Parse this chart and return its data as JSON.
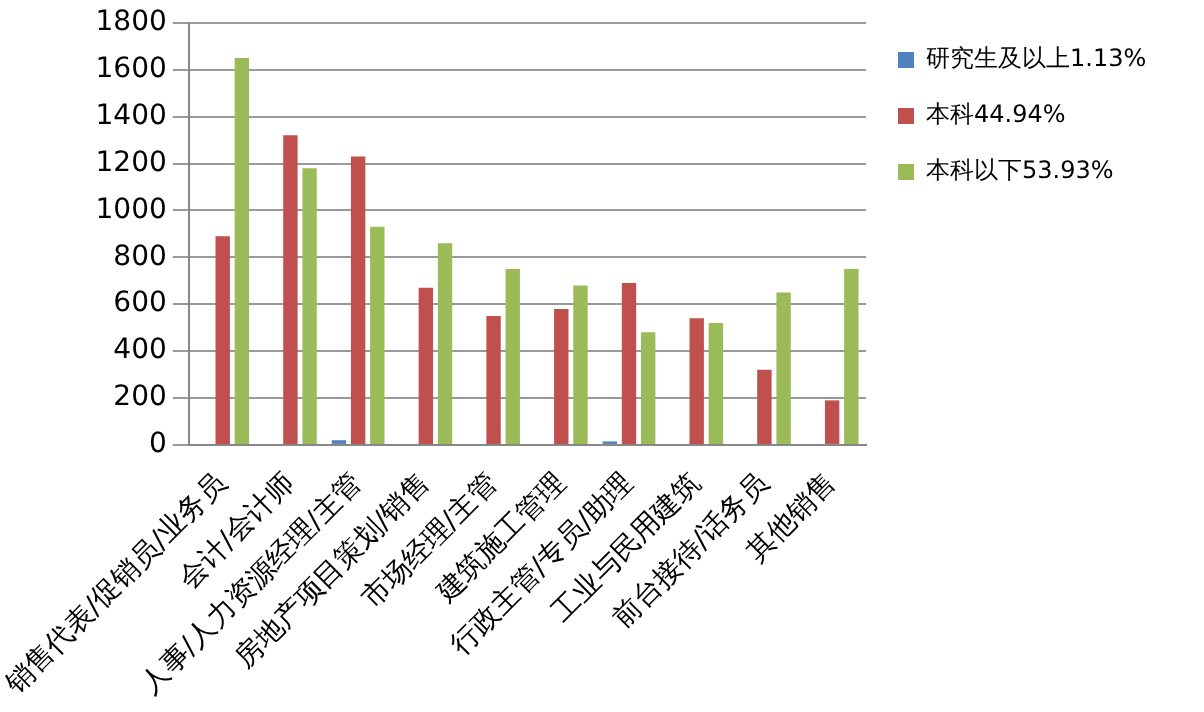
{
  "chart_data": {
    "type": "bar",
    "categories": [
      "销售代表/促销员/业务员",
      "会计/会计师",
      "人事/人力资源经理/主管",
      "房地产项目策划/销售",
      "市场经理/主管",
      "建筑施工管理",
      "行政主管/专员/助理",
      "工业与民用建筑",
      "前台接待/话务员",
      "其他销售"
    ],
    "series": [
      {
        "name": "研究生及以上1.13%",
        "color": "#4f81bd",
        "values": [
          0,
          0,
          20,
          0,
          0,
          0,
          15,
          0,
          0,
          0
        ]
      },
      {
        "name": "本科44.94%",
        "color": "#c0504d",
        "values": [
          890,
          1320,
          1230,
          670,
          550,
          580,
          690,
          540,
          320,
          190
        ]
      },
      {
        "name": "本科以下53.93%",
        "color": "#9bbb59",
        "values": [
          1650,
          1180,
          930,
          860,
          750,
          680,
          480,
          520,
          650,
          750
        ]
      }
    ],
    "ylim": [
      0,
      1800
    ],
    "yticks": [
      0,
      200,
      400,
      600,
      800,
      1000,
      1200,
      1400,
      1600,
      1800
    ],
    "grid": "y",
    "legend": "right"
  }
}
